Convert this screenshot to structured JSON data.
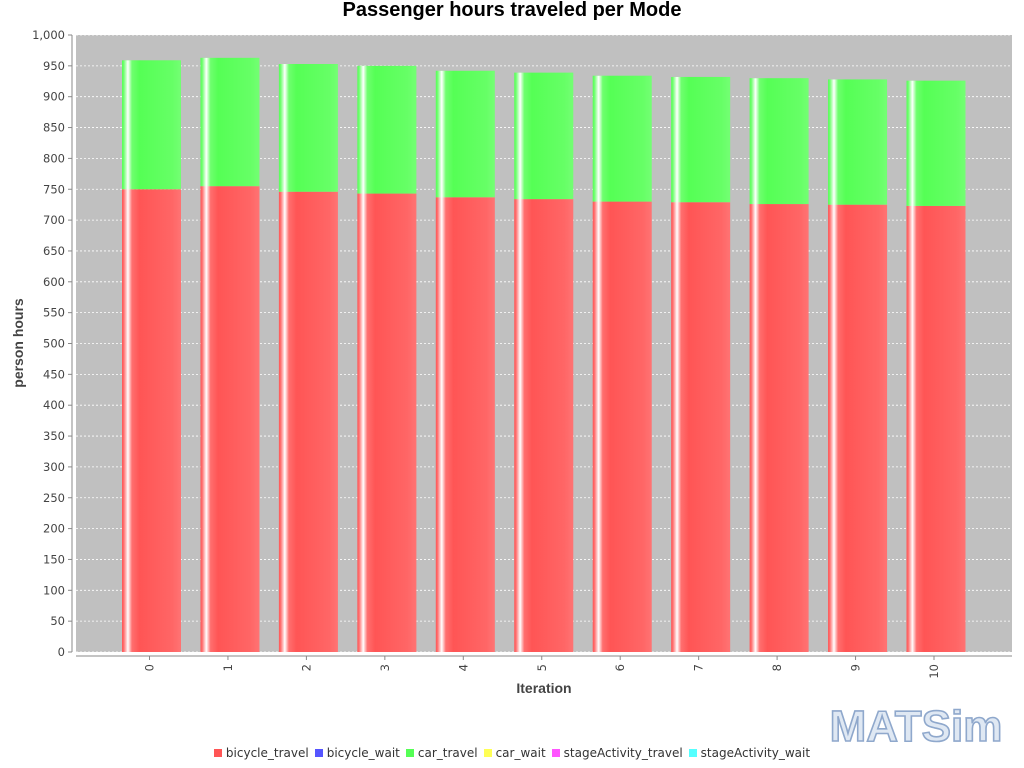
{
  "chart_data": {
    "type": "bar",
    "stacked": true,
    "title": "Passenger hours traveled per Mode",
    "xlabel": "Iteration",
    "ylabel": "person hours",
    "ylim": [
      0,
      1000
    ],
    "yticks": [
      0,
      50,
      100,
      150,
      200,
      250,
      300,
      350,
      400,
      450,
      500,
      550,
      600,
      650,
      700,
      750,
      800,
      850,
      900,
      950,
      1000
    ],
    "ytick_labels": [
      "0",
      "50",
      "100",
      "150",
      "200",
      "250",
      "300",
      "350",
      "400",
      "450",
      "500",
      "550",
      "600",
      "650",
      "700",
      "750",
      "800",
      "850",
      "900",
      "950",
      "1,000"
    ],
    "categories": [
      "0",
      "1",
      "2",
      "3",
      "4",
      "5",
      "6",
      "7",
      "8",
      "9",
      "10"
    ],
    "grid": true,
    "legend_position": "bottom",
    "series": [
      {
        "name": "bicycle_travel",
        "color": "#ff5555",
        "values": [
          750,
          755,
          746,
          743,
          737,
          734,
          730,
          729,
          726,
          725,
          723
        ]
      },
      {
        "name": "bicycle_wait",
        "color": "#5555ff",
        "values": [
          0,
          0,
          0,
          0,
          0,
          0,
          0,
          0,
          0,
          0,
          0
        ]
      },
      {
        "name": "car_travel",
        "color": "#55ff55",
        "values": [
          209,
          208,
          207,
          207,
          205,
          205,
          204,
          203,
          204,
          203,
          203
        ]
      },
      {
        "name": "car_wait",
        "color": "#ffff55",
        "values": [
          0,
          0,
          0,
          0,
          0,
          0,
          0,
          0,
          0,
          0,
          0
        ]
      },
      {
        "name": "stageActivity_travel",
        "color": "#ff55ff",
        "values": [
          0,
          0,
          0,
          0,
          0,
          0,
          0,
          0,
          0,
          0,
          0
        ]
      },
      {
        "name": "stageActivity_wait",
        "color": "#55ffff",
        "values": [
          0,
          0,
          0,
          0,
          0,
          0,
          0,
          0,
          0,
          0,
          0
        ]
      }
    ],
    "plot_background": "#c0c0c0"
  },
  "logo": {
    "text": "MATSim"
  }
}
